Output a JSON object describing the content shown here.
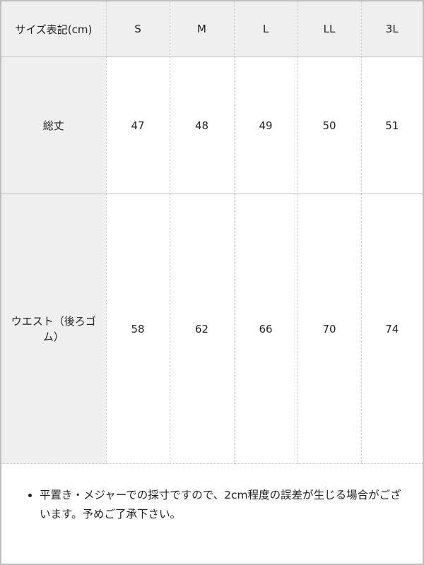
{
  "table": {
    "header": [
      "サイズ表記(cm)",
      "S",
      "M",
      "L",
      "LL",
      "3L"
    ],
    "rows": [
      {
        "label": "総丈",
        "values": [
          "47",
          "48",
          "49",
          "50",
          "51"
        ]
      },
      {
        "label": "ウエスト（後ろゴム）",
        "values": [
          "58",
          "62",
          "66",
          "70",
          "74"
        ]
      }
    ]
  },
  "note": "平置き・メジャーでの採寸ですので、2cm程度の誤差が生じる場合がございます。予めご了承下さい。"
}
